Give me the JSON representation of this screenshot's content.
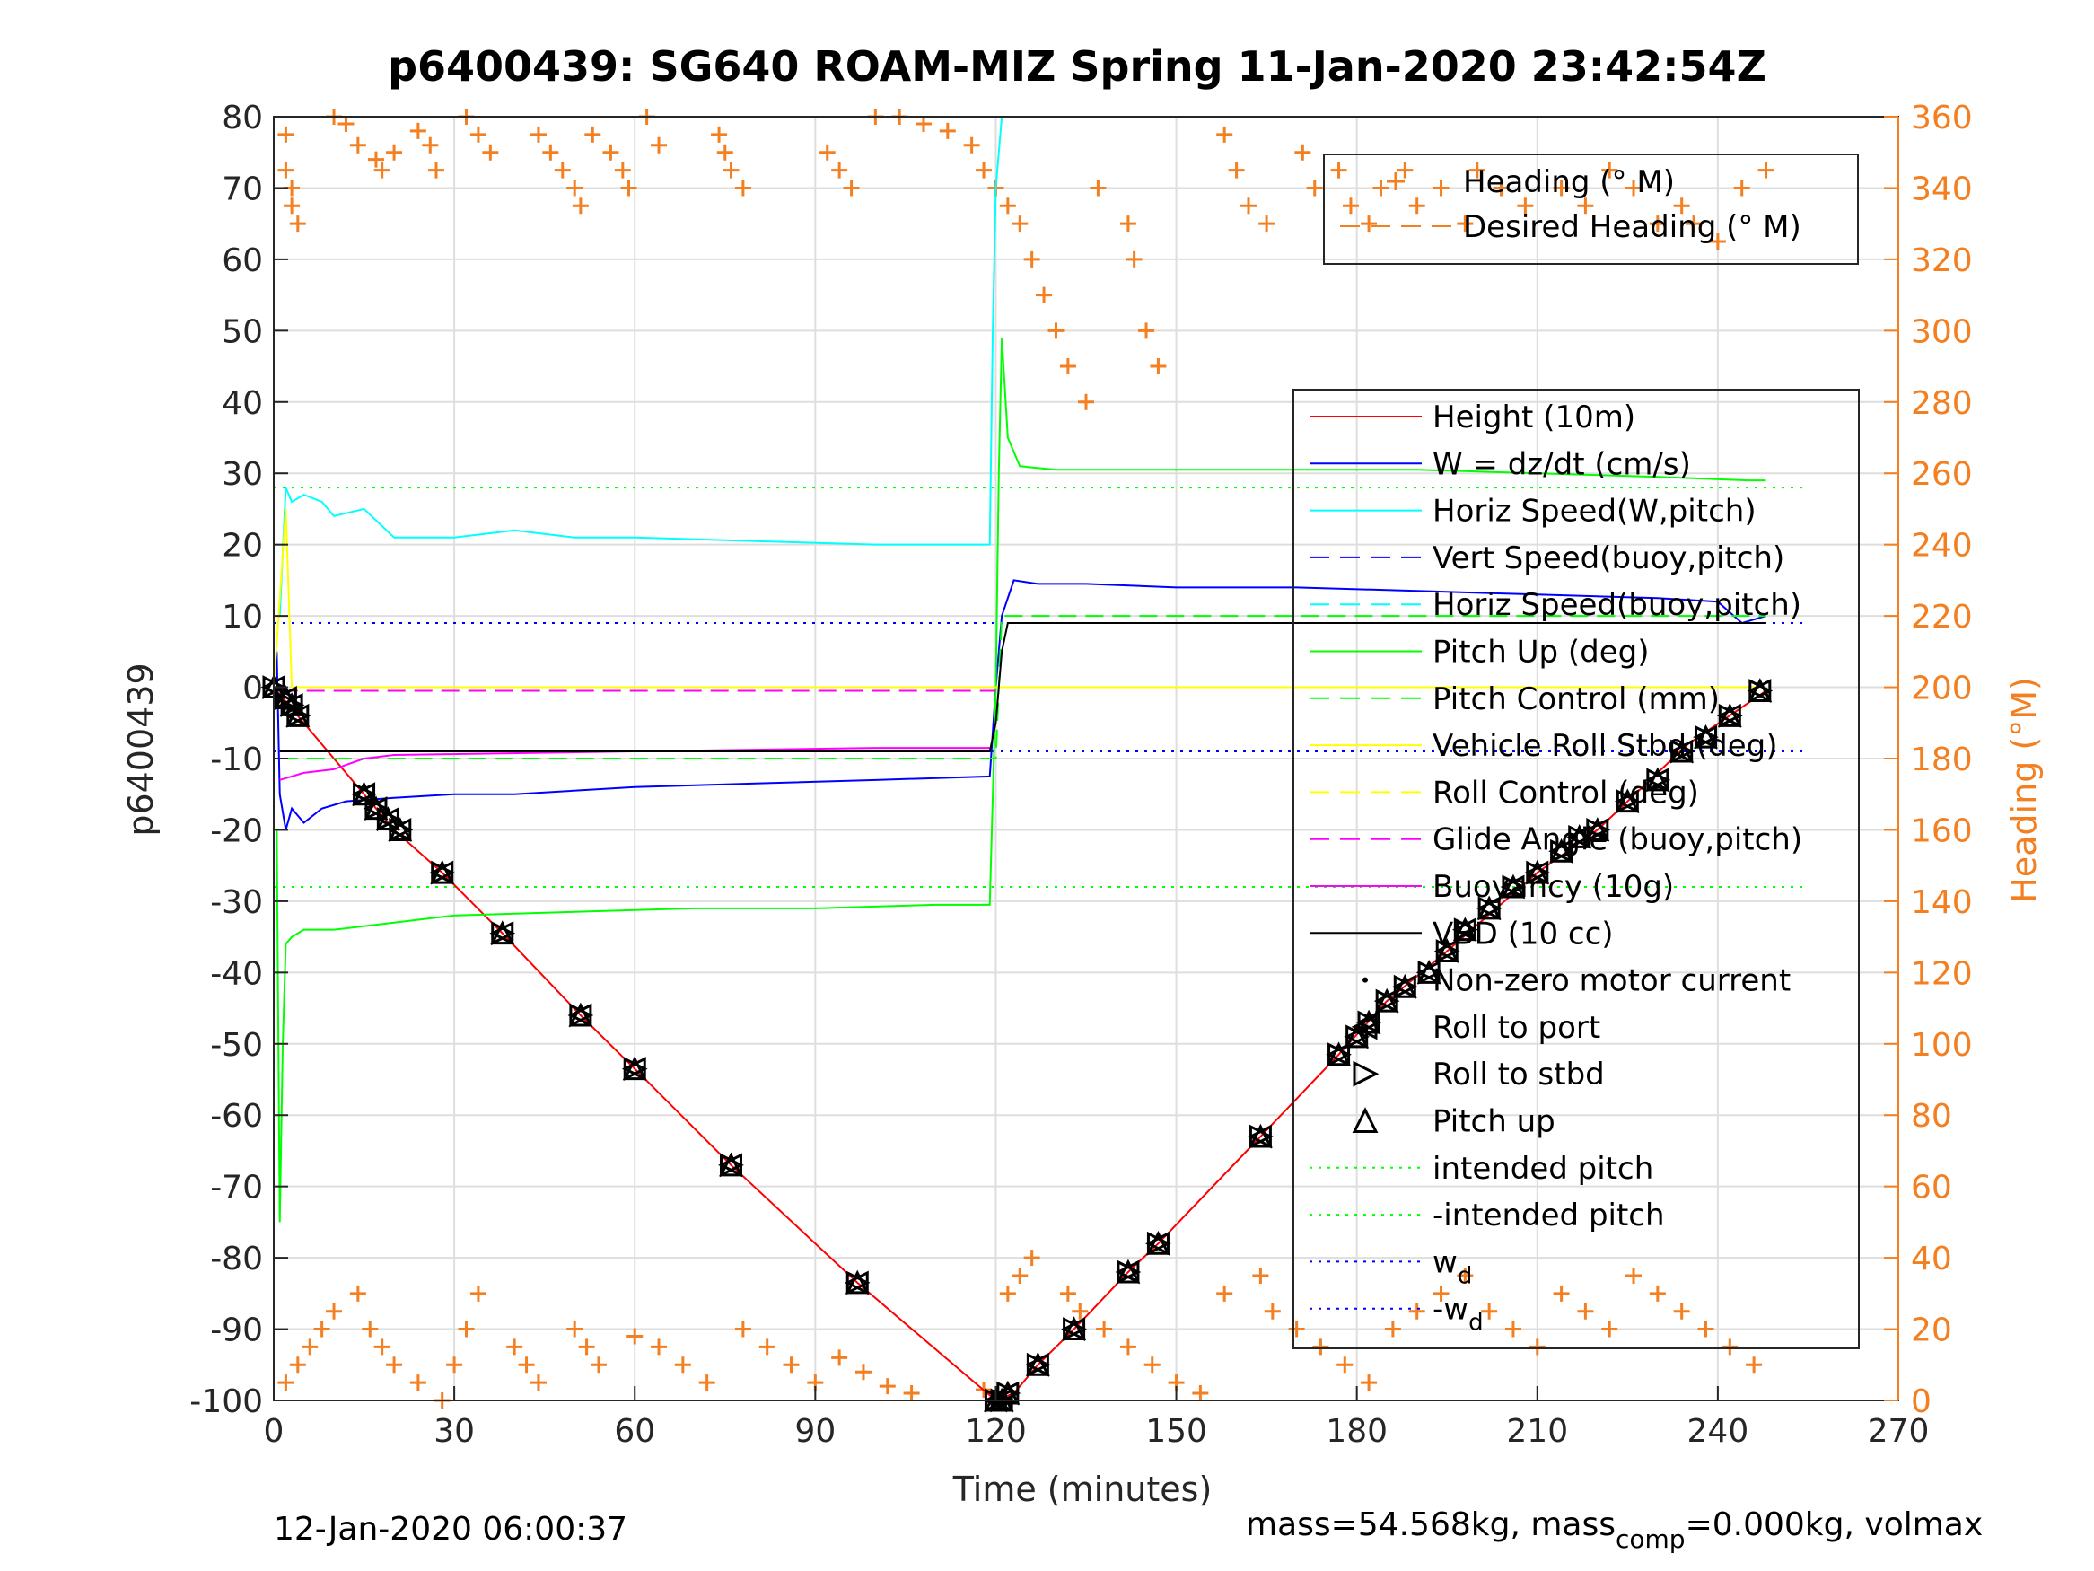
{
  "chart_data": {
    "type": "line",
    "title": "p6400439: SG640 ROAM-MIZ Spring 11-Jan-2020 23:42:54Z",
    "xlabel": "Time (minutes)",
    "ylabel": "p6400439",
    "ylabel_right": "Heading (°M)",
    "xlim": [
      0,
      270
    ],
    "ylim": [
      -100,
      80
    ],
    "ylim_right": [
      0,
      360
    ],
    "xticks": [
      0,
      30,
      60,
      90,
      120,
      150,
      180,
      210,
      240,
      270
    ],
    "yticks": [
      80,
      70,
      60,
      50,
      40,
      30,
      20,
      10,
      0,
      -10,
      -20,
      -30,
      -40,
      -50,
      -60,
      -70,
      -80,
      -90,
      -100
    ],
    "yticks_right": [
      360,
      340,
      320,
      300,
      280,
      260,
      240,
      220,
      200,
      180,
      160,
      140,
      120,
      100,
      80,
      60,
      40,
      20,
      0
    ],
    "grid": true,
    "footer_left": "12-Jan-2020 06:00:37",
    "footer_right": {
      "pre": "mass=54.568kg, mass",
      "sub": "comp",
      "post": "=0.000kg, volmax"
    },
    "legend_heading": [
      {
        "label": "Heading (° M)",
        "color": "#f47f20",
        "style": "plus"
      },
      {
        "label": "Desired Heading (° M)",
        "color": "#f47f20",
        "style": "dash"
      }
    ],
    "legend_main": [
      {
        "label": "Height (10m)",
        "color": "#ff0000",
        "style": "solid"
      },
      {
        "label": "W = dz/dt (cm/s)",
        "color": "#0000ff",
        "style": "solid"
      },
      {
        "label": "Horiz Speed(W,pitch)",
        "color": "#00ffff",
        "style": "solid"
      },
      {
        "label": "Vert Speed(buoy,pitch)",
        "color": "#0000ff",
        "style": "dash"
      },
      {
        "label": "Horiz Speed(buoy,pitch)",
        "color": "#00ffff",
        "style": "dash"
      },
      {
        "label": "Pitch Up (deg)",
        "color": "#00ff00",
        "style": "solid"
      },
      {
        "label": "Pitch Control (mm)",
        "color": "#00ff00",
        "style": "dash"
      },
      {
        "label": "Vehicle Roll Stbd (deg)",
        "color": "#ffff00",
        "style": "solid"
      },
      {
        "label": "Roll Control (deg)",
        "color": "#ffff00",
        "style": "dash"
      },
      {
        "label": "Glide Angle (buoy,pitch)",
        "color": "#ff00ff",
        "style": "dash"
      },
      {
        "label": "Buoyancy (10g)",
        "color": "#ff00ff",
        "style": "solid"
      },
      {
        "label": "VBD (10 cc)",
        "color": "#000000",
        "style": "solid"
      },
      {
        "label": "Non-zero motor current",
        "color": "#000000",
        "style": "dot"
      },
      {
        "label": "Roll to port",
        "color": "#000000",
        "style": "tri-left"
      },
      {
        "label": "Roll to stbd",
        "color": "#000000",
        "style": "tri-right"
      },
      {
        "label": "Pitch up",
        "color": "#000000",
        "style": "tri-up"
      },
      {
        "label": "intended pitch",
        "color": "#00ff00",
        "style": "dotted"
      },
      {
        "label": "-intended pitch",
        "color": "#00ff00",
        "style": "dotted"
      },
      {
        "label": "w",
        "sub": "d",
        "color": "#0000ff",
        "style": "dotted"
      },
      {
        "label": "-w",
        "sub": "d",
        "color": "#0000ff",
        "style": "dotted"
      }
    ],
    "reference_lines": [
      {
        "name": "intended pitch",
        "y": 28,
        "color": "#00ff00"
      },
      {
        "name": "-intended pitch",
        "y": -28,
        "color": "#00ff00"
      },
      {
        "name": "w_d",
        "y": 9,
        "color": "#0000ff"
      },
      {
        "name": "-w_d",
        "y": -9,
        "color": "#0000ff"
      }
    ],
    "series": [
      {
        "name": "Height (10m)",
        "color": "#ff0000",
        "x": [
          0,
          4,
          15,
          20,
          28,
          38,
          51,
          60,
          76,
          97,
          120,
          123,
          127,
          133,
          142,
          147,
          164,
          177,
          185,
          195,
          210,
          220,
          235,
          248
        ],
        "y": [
          0,
          -4,
          -15,
          -20,
          -26,
          -34.5,
          -46,
          -53.5,
          -67,
          -83.5,
          -100,
          -99,
          -95,
          -90,
          -82,
          -78,
          -63,
          -51.5,
          -44,
          -37,
          -26,
          -20,
          -8,
          -0.5
        ]
      },
      {
        "name": "W = dz/dt (cm/s)",
        "color": "#0000ff",
        "x": [
          0.5,
          1,
          2,
          3,
          5,
          8,
          12,
          20,
          30,
          40,
          60,
          80,
          100,
          119,
          120,
          121,
          123,
          127,
          135,
          150,
          170,
          190,
          210,
          230,
          240,
          244,
          248
        ],
        "y": [
          5,
          -15,
          -20,
          -17,
          -19,
          -17,
          -16,
          -15.5,
          -15,
          -15,
          -14,
          -13.5,
          -13,
          -12.5,
          0,
          10,
          15,
          14.5,
          14.5,
          14,
          14,
          13.5,
          13,
          12.5,
          12,
          9,
          10
        ]
      },
      {
        "name": "Horiz Speed(W,pitch)",
        "color": "#00ffff",
        "x": [
          1,
          2,
          3,
          5,
          8,
          10,
          15,
          20,
          30,
          40,
          50,
          60,
          80,
          100,
          119,
          119.5,
          120,
          121
        ],
        "y": [
          10,
          28,
          26,
          27,
          26,
          24,
          25,
          21,
          21,
          22,
          21,
          21,
          20.5,
          20,
          20,
          50,
          70,
          80
        ]
      },
      {
        "name": "Pitch Up (deg)",
        "color": "#00ff00",
        "x": [
          0.5,
          1,
          1.5,
          2,
          3,
          5,
          10,
          20,
          30,
          50,
          70,
          90,
          110,
          119,
          120,
          120.5,
          121,
          122,
          124,
          130,
          150,
          170,
          190,
          210,
          230,
          245,
          248
        ],
        "y": [
          -20,
          -75,
          -50,
          -36,
          -35,
          -34,
          -34,
          -33,
          -32,
          -31.5,
          -31,
          -31,
          -30.5,
          -30.5,
          0,
          30,
          49,
          35,
          31,
          30.5,
          30.5,
          30.5,
          30.5,
          30,
          29.5,
          29,
          29
        ]
      },
      {
        "name": "Pitch Control (mm)",
        "color": "#00ff00",
        "dash": true,
        "x": [
          1,
          120,
          121,
          248
        ],
        "y": [
          -10,
          -10,
          10,
          10
        ]
      },
      {
        "name": "Vehicle Roll Stbd (deg)",
        "color": "#ffff00",
        "x": [
          0,
          2,
          3,
          120,
          121,
          122,
          248
        ],
        "y": [
          0,
          25,
          0,
          0,
          0,
          0,
          0
        ]
      },
      {
        "name": "Glide Angle (buoy,pitch)",
        "color": "#ff00ff",
        "dash": true,
        "x": [
          1,
          120
        ],
        "y": [
          -0.5,
          -0.5
        ]
      },
      {
        "name": "Buoyancy (10g)",
        "color": "#ff00ff",
        "x": [
          1,
          5,
          10,
          15,
          20,
          60,
          100,
          119
        ],
        "y": [
          -13,
          -12,
          -11.5,
          -10,
          -9.5,
          -9,
          -8.5,
          -8.5
        ]
      },
      {
        "name": "VBD (10 cc)",
        "color": "#000000",
        "x": [
          1,
          3,
          119,
          120,
          121,
          122,
          248
        ],
        "y": [
          -9,
          -9,
          -9,
          -5,
          5,
          9,
          9
        ]
      }
    ],
    "markers_triangles": {
      "x": [
        0,
        2,
        3,
        4,
        15,
        17,
        19,
        21,
        28,
        38,
        51,
        60,
        76,
        97,
        120,
        121,
        122,
        127,
        133,
        142,
        147,
        164,
        177,
        180,
        182,
        185,
        188,
        192,
        195,
        198,
        202,
        206,
        210,
        214,
        217,
        220,
        225,
        230,
        234,
        238,
        242,
        247
      ],
      "y": [
        0,
        -1.5,
        -2.5,
        -4,
        -15,
        -17,
        -18.5,
        -20,
        -26,
        -34.5,
        -46,
        -53.5,
        -67,
        -83.5,
        -100,
        -100,
        -99,
        -95,
        -90,
        -82,
        -78,
        -63,
        -51.5,
        -49,
        -47,
        -44,
        -42,
        -40,
        -37,
        -34,
        -31,
        -28,
        -26,
        -23,
        -21,
        -20,
        -16,
        -13,
        -9,
        -7,
        -4,
        -0.5
      ]
    },
    "heading_points": {
      "x": [
        2,
        2,
        3,
        3,
        4,
        10,
        12,
        14,
        17,
        18,
        20,
        24,
        26,
        27,
        32,
        34,
        36,
        44,
        46,
        48,
        50,
        51,
        53,
        56,
        58,
        59,
        62,
        64,
        74,
        75,
        76,
        78,
        92,
        94,
        96,
        100,
        104,
        108,
        112,
        116,
        118,
        120,
        122,
        124,
        126,
        128,
        130,
        132,
        135,
        137,
        142,
        143,
        145,
        147,
        158,
        160,
        162,
        165,
        171,
        173,
        177,
        179,
        182,
        184,
        188,
        190,
        194,
        198,
        200,
        204,
        208,
        214,
        218,
        222,
        226,
        230,
        234,
        236,
        240,
        244,
        248,
        2,
        4,
        6,
        8,
        10,
        14,
        16,
        18,
        20,
        24,
        28,
        30,
        32,
        34,
        40,
        42,
        44,
        50,
        52,
        54,
        60,
        64,
        68,
        72,
        78,
        82,
        86,
        90,
        94,
        98,
        102,
        106,
        118,
        122,
        124,
        126,
        132,
        134,
        138,
        142,
        146,
        150,
        154,
        158,
        164,
        166,
        170,
        174,
        178,
        182,
        186,
        190,
        194,
        198,
        202,
        206,
        210,
        214,
        218,
        222,
        226,
        230,
        234,
        238,
        242,
        246
      ],
      "y": [
        355,
        345,
        340,
        335,
        330,
        360,
        358,
        352,
        348,
        345,
        350,
        356,
        352,
        345,
        360,
        355,
        350,
        355,
        350,
        345,
        340,
        335,
        355,
        350,
        345,
        340,
        360,
        352,
        355,
        350,
        345,
        340,
        350,
        345,
        340,
        360,
        360,
        358,
        356,
        352,
        345,
        340,
        335,
        330,
        320,
        310,
        300,
        290,
        280,
        340,
        330,
        320,
        300,
        290,
        355,
        345,
        335,
        330,
        350,
        340,
        345,
        335,
        330,
        340,
        345,
        335,
        340,
        330,
        345,
        340,
        335,
        340,
        335,
        345,
        340,
        330,
        335,
        330,
        325,
        340,
        345,
        5,
        10,
        15,
        20,
        25,
        30,
        20,
        15,
        10,
        5,
        0,
        10,
        20,
        30,
        15,
        10,
        5,
        20,
        15,
        10,
        18,
        15,
        10,
        5,
        20,
        15,
        10,
        5,
        12,
        8,
        4,
        2,
        3,
        30,
        35,
        40,
        30,
        25,
        20,
        15,
        10,
        5,
        2,
        30,
        35,
        25,
        20,
        15,
        10,
        5,
        20,
        25,
        30,
        35,
        25,
        20,
        15,
        30,
        25,
        20,
        35,
        30,
        25,
        20,
        15,
        10
      ]
    }
  }
}
